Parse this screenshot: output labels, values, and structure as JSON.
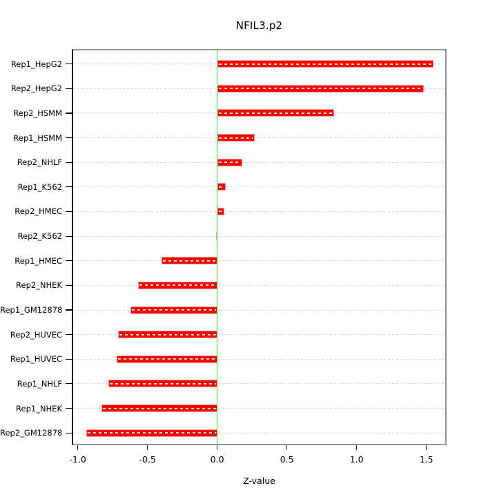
{
  "title": "NFIL3.p2",
  "chart_data": {
    "type": "bar",
    "orientation": "horizontal",
    "title": "NFIL3.p2",
    "xlabel": "Z-value",
    "ylabel": "",
    "categories": [
      "Rep1_HepG2",
      "Rep2_HepG2",
      "Rep2_HSMM",
      "Rep1_HSMM",
      "Rep2_NHLF",
      "Rep1_K562",
      "Rep2_HMEC",
      "Rep2_K562",
      "Rep1_HMEC",
      "Rep2_NHEK",
      "Rep1_GM12878",
      "Rep2_HUVEC",
      "Rep1_HUVEC",
      "Rep1_NHLF",
      "Rep1_NHEK",
      "Rep2_GM12878"
    ],
    "values": [
      1.55,
      1.48,
      0.84,
      0.27,
      0.18,
      0.06,
      0.05,
      -0.01,
      -0.4,
      -0.57,
      -0.62,
      -0.71,
      -0.72,
      -0.78,
      -0.83,
      -0.94
    ],
    "x_tick_labels": [
      "-1.0",
      "-0.5",
      "0.0",
      "0.5",
      "1.0",
      "1.5"
    ],
    "x_tick_values": [
      -1.0,
      -0.5,
      0.0,
      0.5,
      1.0,
      1.5
    ],
    "xlim": [
      -1.04,
      1.65
    ],
    "zero_reference_line": 0.0,
    "grid": "dotted-horizontal-per-category",
    "legend_position": "none",
    "colors": {
      "bar": "#ff0000",
      "bar_border": "#ff9d9d",
      "zero_line": "#00ff00",
      "gridline": "#d4d4d4",
      "box_border": "#969696",
      "axis": "#000000",
      "text": "#000000",
      "background": "#ffffff"
    }
  }
}
